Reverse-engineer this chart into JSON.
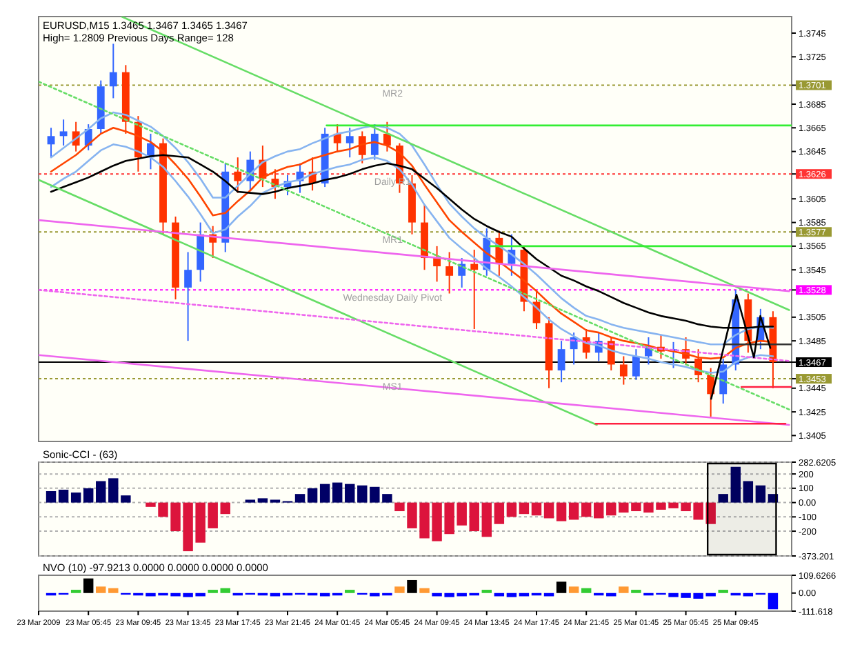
{
  "chart_data": [
    {
      "type": "candlestick",
      "title": "EURUSD,M15  1.3465 1.3467 1.3465 1.3467",
      "subtitle": "High= 1.2809   Previous Days Range= 128",
      "x": [
        "2009-03-23T02:45",
        "2009-03-23T03:45",
        "2009-03-23T04:45",
        "2009-03-23T05:45",
        "2009-03-23T06:45",
        "2009-03-23T07:45",
        "2009-03-23T08:45",
        "2009-03-23T09:45",
        "2009-03-23T10:45",
        "2009-03-23T11:45",
        "2009-03-23T12:45",
        "2009-03-23T13:45",
        "2009-03-23T14:45",
        "2009-03-23T15:45",
        "2009-03-23T16:45",
        "2009-03-23T17:45",
        "2009-03-23T18:45",
        "2009-03-23T19:45",
        "2009-03-23T20:45",
        "2009-03-23T21:45",
        "2009-03-23T22:45",
        "2009-03-23T23:45",
        "2009-03-24T00:45",
        "2009-03-24T01:45",
        "2009-03-24T02:45",
        "2009-03-24T03:45",
        "2009-03-24T04:45",
        "2009-03-24T05:45",
        "2009-03-24T06:45",
        "2009-03-24T07:45",
        "2009-03-24T08:45",
        "2009-03-24T09:45",
        "2009-03-24T10:45",
        "2009-03-24T11:45",
        "2009-03-24T12:45",
        "2009-03-24T13:45",
        "2009-03-24T14:45",
        "2009-03-24T15:45",
        "2009-03-24T16:45",
        "2009-03-24T17:45",
        "2009-03-24T18:45",
        "2009-03-24T19:45",
        "2009-03-24T20:45",
        "2009-03-24T21:45",
        "2009-03-24T22:45",
        "2009-03-24T23:45",
        "2009-03-25T00:45",
        "2009-03-25T01:45",
        "2009-03-25T02:45",
        "2009-03-25T03:45",
        "2009-03-25T04:45",
        "2009-03-25T05:45",
        "2009-03-25T06:45",
        "2009-03-25T07:45",
        "2009-03-25T08:45",
        "2009-03-25T09:45",
        "2009-03-25T10:45",
        "2009-03-25T11:45",
        "2009-03-25T12:45"
      ],
      "ohlc": [
        [
          1.3651,
          1.3665,
          1.364,
          1.3658
        ],
        [
          1.3658,
          1.3672,
          1.365,
          1.3662
        ],
        [
          1.3662,
          1.367,
          1.3645,
          1.365
        ],
        [
          1.365,
          1.3668,
          1.3646,
          1.3664
        ],
        [
          1.3664,
          1.3705,
          1.366,
          1.37
        ],
        [
          1.37,
          1.3736,
          1.369,
          1.3712
        ],
        [
          1.3712,
          1.3718,
          1.366,
          1.367
        ],
        [
          1.367,
          1.3675,
          1.3628,
          1.364
        ],
        [
          1.364,
          1.366,
          1.363,
          1.3652
        ],
        [
          1.3652,
          1.3656,
          1.3575,
          1.3585
        ],
        [
          1.3585,
          1.359,
          1.352,
          1.353
        ],
        [
          1.353,
          1.356,
          1.3485,
          1.3545
        ],
        [
          1.3545,
          1.3585,
          1.3535,
          1.3575
        ],
        [
          1.3575,
          1.3582,
          1.3555,
          1.3568
        ],
        [
          1.3568,
          1.3635,
          1.356,
          1.3628
        ],
        [
          1.3628,
          1.364,
          1.361,
          1.362
        ],
        [
          1.362,
          1.3645,
          1.3612,
          1.3638
        ],
        [
          1.3638,
          1.365,
          1.3615,
          1.3622
        ],
        [
          1.3622,
          1.363,
          1.3605,
          1.3615
        ],
        [
          1.3615,
          1.3625,
          1.3608,
          1.362
        ],
        [
          1.362,
          1.3635,
          1.361,
          1.3628
        ],
        [
          1.3628,
          1.364,
          1.3612,
          1.3618
        ],
        [
          1.3618,
          1.3665,
          1.3615,
          1.366
        ],
        [
          1.366,
          1.3668,
          1.3645,
          1.3652
        ],
        [
          1.3652,
          1.3665,
          1.364,
          1.3658
        ],
        [
          1.3658,
          1.3662,
          1.3635,
          1.3642
        ],
        [
          1.3642,
          1.3668,
          1.3638,
          1.366
        ],
        [
          1.366,
          1.367,
          1.3645,
          1.365
        ],
        [
          1.365,
          1.3652,
          1.361,
          1.3618
        ],
        [
          1.3618,
          1.3625,
          1.3575,
          1.3585
        ],
        [
          1.3585,
          1.36,
          1.3545,
          1.3555
        ],
        [
          1.3555,
          1.3565,
          1.3535,
          1.3548
        ],
        [
          1.3548,
          1.356,
          1.3525,
          1.354
        ],
        [
          1.354,
          1.3555,
          1.353,
          1.355
        ],
        [
          1.355,
          1.3562,
          1.3495,
          1.3545
        ],
        [
          1.3545,
          1.358,
          1.354,
          1.3572
        ],
        [
          1.3572,
          1.3578,
          1.354,
          1.355
        ],
        [
          1.355,
          1.3575,
          1.354,
          1.3562
        ],
        [
          1.3562,
          1.3565,
          1.351,
          1.3518
        ],
        [
          1.3518,
          1.3528,
          1.3495,
          1.35
        ],
        [
          1.35,
          1.3505,
          1.3445,
          1.346
        ],
        [
          1.346,
          1.3485,
          1.345,
          1.3478
        ],
        [
          1.3478,
          1.3492,
          1.3465,
          1.3488
        ],
        [
          1.3488,
          1.3495,
          1.347,
          1.3475
        ],
        [
          1.3475,
          1.3492,
          1.3468,
          1.3485
        ],
        [
          1.3485,
          1.3488,
          1.346,
          1.3465
        ],
        [
          1.3465,
          1.3472,
          1.3448,
          1.3455
        ],
        [
          1.3455,
          1.3478,
          1.3452,
          1.3472
        ],
        [
          1.3472,
          1.3488,
          1.3465,
          1.348
        ],
        [
          1.348,
          1.349,
          1.347,
          1.3476
        ],
        [
          1.3476,
          1.3484,
          1.3462,
          1.3478
        ],
        [
          1.3478,
          1.3488,
          1.3465,
          1.347
        ],
        [
          1.347,
          1.3478,
          1.345,
          1.3456
        ],
        [
          1.3456,
          1.3462,
          1.3421,
          1.344
        ],
        [
          1.344,
          1.347,
          1.3432,
          1.3465
        ],
        [
          1.3465,
          1.3528,
          1.346,
          1.352
        ],
        [
          1.352,
          1.3525,
          1.3475,
          1.3485
        ],
        [
          1.3485,
          1.3512,
          1.3478,
          1.3505
        ],
        [
          1.3505,
          1.351,
          1.3445,
          1.3467
        ]
      ],
      "colors": [
        "#3366ff",
        "#3366ff",
        "#ff3300",
        "#3366ff",
        "#3366ff",
        "#3366ff",
        "#ff3300",
        "#ff3300",
        "#3366ff",
        "#ff3300",
        "#ff3300",
        "#3366ff",
        "#3366ff",
        "#ff3300",
        "#3366ff",
        "#ff3300",
        "#3366ff",
        "#ff3300",
        "#ff3300",
        "#3366ff",
        "#3366ff",
        "#ff3300",
        "#3366ff",
        "#ff3300",
        "#3366ff",
        "#ff3300",
        "#3366ff",
        "#ff3300",
        "#ff3300",
        "#ff3300",
        "#ff3300",
        "#ff3300",
        "#ff3300",
        "#3366ff",
        "#ff3300",
        "#3366ff",
        "#ff3300",
        "#3366ff",
        "#ff3300",
        "#ff3300",
        "#ff3300",
        "#3366ff",
        "#3366ff",
        "#ff3300",
        "#3366ff",
        "#ff3300",
        "#ff3300",
        "#3366ff",
        "#3366ff",
        "#ff3300",
        "#3366ff",
        "#ff3300",
        "#ff3300",
        "#ff3300",
        "#3366ff",
        "#3366ff",
        "#ff3300",
        "#3366ff",
        "#ff3300"
      ],
      "series": [
        {
          "type": "line",
          "color": "#87b4f0",
          "values": [
            1.364,
            1.3648,
            1.3656,
            1.3664,
            1.3673,
            1.3678,
            1.3676,
            1.3671,
            1.3666,
            1.3658,
            1.3648,
            1.3636,
            1.3622,
            1.3606,
            1.3606,
            1.3616,
            1.3626,
            1.3636,
            1.3641,
            1.3645,
            1.3647,
            1.3652,
            1.3656,
            1.366,
            1.3662,
            1.3665,
            1.3667,
            1.3665,
            1.366,
            1.365,
            1.3634,
            1.3617,
            1.3601,
            1.359,
            1.358,
            1.3572,
            1.3565,
            1.3558,
            1.355,
            1.3541,
            1.3531,
            1.3521,
            1.3513,
            1.3506,
            1.3503,
            1.3499,
            1.3496,
            1.3494,
            1.3492,
            1.349,
            1.3488,
            1.3486,
            1.3484,
            1.3482,
            1.3482,
            1.349,
            1.3495,
            1.3497,
            1.3496
          ]
        },
        {
          "type": "line",
          "color": "#87b4f0",
          "values": [
            1.3615,
            1.3622,
            1.3628,
            1.3637,
            1.3646,
            1.3651,
            1.3649,
            1.3645,
            1.364,
            1.3632,
            1.362,
            1.3607,
            1.3592,
            1.3576,
            1.3579,
            1.359,
            1.3599,
            1.361,
            1.3615,
            1.3619,
            1.3621,
            1.3626,
            1.3629,
            1.3632,
            1.3634,
            1.3638,
            1.364,
            1.3637,
            1.363,
            1.3617,
            1.36,
            1.3586,
            1.3572,
            1.3563,
            1.3555,
            1.3546,
            1.3539,
            1.3531,
            1.3522,
            1.3513,
            1.3503,
            1.3495,
            1.3489,
            1.3483,
            1.3481,
            1.3477,
            1.3474,
            1.3472,
            1.347,
            1.3467,
            1.3465,
            1.3463,
            1.346,
            1.3458,
            1.3459,
            1.3467,
            1.3471,
            1.3473,
            1.3472
          ]
        },
        {
          "type": "line",
          "color": "#ff4500",
          "values": [
            1.3628,
            1.3635,
            1.3642,
            1.3651,
            1.366,
            1.3665,
            1.3662,
            1.3658,
            1.3653,
            1.3645,
            1.3634,
            1.3622,
            1.3607,
            1.3591,
            1.3593,
            1.3603,
            1.3612,
            1.3623,
            1.3628,
            1.3632,
            1.3634,
            1.3639,
            1.3642,
            1.3645,
            1.3647,
            1.3651,
            1.3653,
            1.365,
            1.3644,
            1.3633,
            1.3617,
            1.3602,
            1.3587,
            1.3577,
            1.3568,
            1.3559,
            1.3552,
            1.3544,
            1.3536,
            1.3527,
            1.3517,
            1.3508,
            1.3501,
            1.3494,
            1.3492,
            1.3488,
            1.3485,
            1.3483,
            1.3481,
            1.3478,
            1.3476,
            1.3474,
            1.3471,
            1.347,
            1.3471,
            1.3479,
            1.3483,
            1.3485,
            1.3484
          ]
        },
        {
          "type": "line",
          "color": "#000000",
          "values": [
            1.3611,
            1.3615,
            1.3619,
            1.3623,
            1.3628,
            1.3633,
            1.3637,
            1.3639,
            1.3641,
            1.3642,
            1.3641,
            1.364,
            1.3634,
            1.3628,
            1.362,
            1.3611,
            1.361,
            1.3609,
            1.3611,
            1.3614,
            1.3616,
            1.3618,
            1.3621,
            1.3623,
            1.3626,
            1.363,
            1.3633,
            1.3635,
            1.3633,
            1.363,
            1.3622,
            1.3614,
            1.3605,
            1.3596,
            1.3588,
            1.3582,
            1.3577,
            1.3573,
            1.3563,
            1.3554,
            1.3547,
            1.354,
            1.3536,
            1.3531,
            1.3527,
            1.3522,
            1.3517,
            1.3513,
            1.3509,
            1.3506,
            1.3504,
            1.3502,
            1.3499,
            1.3497,
            1.3496,
            1.3496,
            1.3496,
            1.3497,
            1.3497
          ]
        },
        {
          "type": "line",
          "color": "#66dd66",
          "x": [
            "2009-03-23T08:25",
            "2009-03-25T14:03"
          ],
          "values": [
            1.3759,
            1.3511
          ]
        },
        {
          "type": "line",
          "color": "#66dd66",
          "x": [
            "2009-03-23T01:45",
            "2009-03-24T22:36"
          ],
          "values": [
            1.3621,
            1.3414
          ]
        },
        {
          "type": "line",
          "color": "#66dd66",
          "line_style": "dotted",
          "x": [
            "2009-03-23T01:45",
            "2009-03-25T14:03"
          ],
          "values": [
            1.3704,
            1.3427
          ]
        },
        {
          "type": "line",
          "color": "#ee66ee",
          "x": [
            "2009-03-23T01:45",
            "2009-03-25T14:03"
          ],
          "values": [
            1.3587,
            1.3527
          ]
        },
        {
          "type": "line",
          "color": "#ee66ee",
          "x": [
            "2009-03-23T01:45",
            "2009-03-25T14:03"
          ],
          "values": [
            1.3473,
            1.3414
          ]
        },
        {
          "type": "line",
          "color": "#ee66ee",
          "line_style": "dotted",
          "x": [
            "2009-03-23T01:45",
            "2009-03-25T14:03"
          ],
          "values": [
            1.3528,
            1.3468
          ]
        },
        {
          "type": "line",
          "color": "#33ee33",
          "x": [
            "2009-03-24T00:53",
            "2009-03-25T14:15"
          ],
          "values": [
            1.3667,
            1.3667
          ]
        },
        {
          "type": "line",
          "color": "#33ee33",
          "x": [
            "2009-03-24T14:01",
            "2009-03-25T14:15"
          ],
          "values": [
            1.3565,
            1.3565
          ]
        },
        {
          "type": "line",
          "color": "#ff2040",
          "x": [
            "2009-03-25T10:13",
            "2009-03-25T14:15"
          ],
          "values": [
            1.3446,
            1.3446
          ]
        },
        {
          "type": "line",
          "color": "#ff2040",
          "x": [
            "2009-03-24T22:30",
            "2009-03-25T13:45"
          ],
          "values": [
            1.3415,
            1.3415
          ]
        },
        {
          "type": "line",
          "color": "#333333",
          "x": [
            "2009-03-25T08:48",
            "2009-03-25T14:15"
          ],
          "values": [
            1.3482,
            1.3482
          ]
        },
        {
          "type": "line",
          "color": "#000000",
          "x": [
            "2009-03-25T07:47",
            "2009-03-25T09:49",
            "2009-03-25T11:13",
            "2009-03-25T11:44",
            "2009-03-25T12:32"
          ],
          "values": [
            1.3436,
            1.3524,
            1.3471,
            1.3506,
            1.3479
          ]
        }
      ],
      "ref_lines": [
        {
          "axis": "y",
          "value": 1.3701,
          "label": "MR2",
          "color": "#999933",
          "line_style": "dotted"
        },
        {
          "axis": "y",
          "value": 1.3626,
          "label": "Daily R1",
          "color": "#ff3333",
          "line_style": "dotted"
        },
        {
          "axis": "y",
          "value": 1.3577,
          "label": "MR1",
          "color": "#999933",
          "line_style": "dotted"
        },
        {
          "axis": "y",
          "value": 1.3528,
          "label": "Wednesday  Daily Pivot",
          "color": "#ff00ff",
          "line_style": "dotted"
        },
        {
          "axis": "y",
          "value": 1.3453,
          "label": "MS1",
          "color": "#999933",
          "line_style": "dotted"
        },
        {
          "axis": "y",
          "value": 1.3467,
          "label": null,
          "color": "#000000",
          "line_style": "solid"
        }
      ],
      "xlim": [
        "2009-03-23T01:45",
        "2009-03-25T14:15"
      ],
      "ylim": [
        1.34,
        1.3759
      ],
      "yticks": [
        1.3745,
        1.3725,
        1.3701,
        1.3685,
        1.3665,
        1.3645,
        1.3626,
        1.3605,
        1.3585,
        1.3577,
        1.3565,
        1.3545,
        1.3528,
        1.3505,
        1.3485,
        1.3467,
        1.3453,
        1.3445,
        1.3425,
        1.3405
      ],
      "tick_labels": "y"
    },
    {
      "type": "bar",
      "title": "Sonic-CCI - (63)",
      "x": [
        "2009-03-23T02:45",
        "2009-03-23T03:45",
        "2009-03-23T04:45",
        "2009-03-23T05:45",
        "2009-03-23T06:45",
        "2009-03-23T07:45",
        "2009-03-23T08:45",
        "2009-03-23T09:45",
        "2009-03-23T10:45",
        "2009-03-23T11:45",
        "2009-03-23T12:45",
        "2009-03-23T13:45",
        "2009-03-23T14:45",
        "2009-03-23T15:45",
        "2009-03-23T16:45",
        "2009-03-23T17:45",
        "2009-03-23T18:45",
        "2009-03-23T19:45",
        "2009-03-23T20:45",
        "2009-03-23T21:45",
        "2009-03-23T22:45",
        "2009-03-23T23:45",
        "2009-03-24T00:45",
        "2009-03-24T01:45",
        "2009-03-24T02:45",
        "2009-03-24T03:45",
        "2009-03-24T04:45",
        "2009-03-24T05:45",
        "2009-03-24T06:45",
        "2009-03-24T07:45",
        "2009-03-24T08:45",
        "2009-03-24T09:45",
        "2009-03-24T10:45",
        "2009-03-24T11:45",
        "2009-03-24T12:45",
        "2009-03-24T13:45",
        "2009-03-24T14:45",
        "2009-03-24T15:45",
        "2009-03-24T16:45",
        "2009-03-24T17:45",
        "2009-03-24T18:45",
        "2009-03-24T19:45",
        "2009-03-24T20:45",
        "2009-03-24T21:45",
        "2009-03-24T22:45",
        "2009-03-24T23:45",
        "2009-03-25T00:45",
        "2009-03-25T01:45",
        "2009-03-25T02:45",
        "2009-03-25T03:45",
        "2009-03-25T04:45",
        "2009-03-25T05:45",
        "2009-03-25T06:45",
        "2009-03-25T07:45",
        "2009-03-25T08:45",
        "2009-03-25T09:45",
        "2009-03-25T10:45",
        "2009-03-25T11:45",
        "2009-03-25T12:45"
      ],
      "values": [
        80,
        90,
        70,
        100,
        150,
        170,
        50,
        0,
        -30,
        -100,
        -200,
        -340,
        -280,
        -180,
        -80,
        0,
        20,
        30,
        20,
        10,
        60,
        100,
        130,
        140,
        130,
        120,
        110,
        60,
        -60,
        -180,
        -250,
        -270,
        -220,
        -160,
        -200,
        -240,
        -150,
        -100,
        -80,
        -90,
        -110,
        -130,
        -120,
        -100,
        -110,
        -90,
        -70,
        -60,
        -70,
        -50,
        -40,
        -60,
        -120,
        -150,
        60,
        250,
        150,
        120,
        60
      ],
      "colors": [
        "#000066",
        "#000066",
        "#000066",
        "#000066",
        "#000066",
        "#000066",
        "#000066",
        "#dc143c",
        "#dc143c",
        "#dc143c",
        "#dc143c",
        "#dc143c",
        "#dc143c",
        "#dc143c",
        "#dc143c",
        "#dc143c",
        "#000066",
        "#000066",
        "#000066",
        "#000066",
        "#000066",
        "#000066",
        "#000066",
        "#000066",
        "#000066",
        "#000066",
        "#000066",
        "#000066",
        "#dc143c",
        "#dc143c",
        "#dc143c",
        "#dc143c",
        "#dc143c",
        "#dc143c",
        "#dc143c",
        "#dc143c",
        "#dc143c",
        "#dc143c",
        "#dc143c",
        "#dc143c",
        "#dc143c",
        "#dc143c",
        "#dc143c",
        "#dc143c",
        "#dc143c",
        "#dc143c",
        "#dc143c",
        "#dc143c",
        "#dc143c",
        "#dc143c",
        "#dc143c",
        "#dc143c",
        "#dc143c",
        "#dc143c",
        "#000066",
        "#000066",
        "#000066",
        "#000066",
        "#000066"
      ],
      "bands": [
        {
          "axis": "x",
          "from": "2009-03-25T07:30",
          "to": "2009-03-25T13:00",
          "color": "#000000"
        }
      ],
      "grid": "y",
      "xlim": [
        "2009-03-23T01:45",
        "2009-03-25T14:15"
      ],
      "ylim": [
        -373.201,
        282.6205
      ],
      "yticks": [
        282.6205,
        200,
        100,
        {
          "value": 0,
          "label": "0.00"
        },
        -100,
        -200,
        -373.201
      ],
      "tick_labels": "y"
    },
    {
      "type": "bar",
      "title": "NVO (10) -97.9213 0.0000 0.0000 0.0000 0.0000",
      "x": [
        "2009-03-23T02:45",
        "2009-03-23T03:45",
        "2009-03-23T04:45",
        "2009-03-23T05:45",
        "2009-03-23T06:45",
        "2009-03-23T07:45",
        "2009-03-23T08:45",
        "2009-03-23T09:45",
        "2009-03-23T10:45",
        "2009-03-23T11:45",
        "2009-03-23T12:45",
        "2009-03-23T13:45",
        "2009-03-23T14:45",
        "2009-03-23T15:45",
        "2009-03-23T16:45",
        "2009-03-23T17:45",
        "2009-03-23T18:45",
        "2009-03-23T19:45",
        "2009-03-23T20:45",
        "2009-03-23T21:45",
        "2009-03-23T22:45",
        "2009-03-23T23:45",
        "2009-03-24T00:45",
        "2009-03-24T01:45",
        "2009-03-24T02:45",
        "2009-03-24T03:45",
        "2009-03-24T04:45",
        "2009-03-24T05:45",
        "2009-03-24T06:45",
        "2009-03-24T07:45",
        "2009-03-24T08:45",
        "2009-03-24T09:45",
        "2009-03-24T10:45",
        "2009-03-24T11:45",
        "2009-03-24T12:45",
        "2009-03-24T13:45",
        "2009-03-24T14:45",
        "2009-03-24T15:45",
        "2009-03-24T16:45",
        "2009-03-24T17:45",
        "2009-03-24T18:45",
        "2009-03-24T19:45",
        "2009-03-24T20:45",
        "2009-03-24T21:45",
        "2009-03-24T22:45",
        "2009-03-24T23:45",
        "2009-03-25T00:45",
        "2009-03-25T01:45",
        "2009-03-25T02:45",
        "2009-03-25T03:45",
        "2009-03-25T04:45",
        "2009-03-25T05:45",
        "2009-03-25T06:45",
        "2009-03-25T07:45",
        "2009-03-25T08:45",
        "2009-03-25T09:45",
        "2009-03-25T10:45",
        "2009-03-25T11:45",
        "2009-03-25T12:45"
      ],
      "values": [
        -15,
        -10,
        20,
        90,
        40,
        30,
        -10,
        -15,
        -20,
        -15,
        -20,
        -25,
        -20,
        20,
        30,
        -15,
        -10,
        -15,
        -20,
        -15,
        -10,
        -15,
        -20,
        -15,
        20,
        -10,
        -20,
        -15,
        40,
        80,
        30,
        -20,
        -25,
        -20,
        -15,
        20,
        -20,
        -25,
        -20,
        -15,
        -20,
        70,
        40,
        30,
        -15,
        -20,
        40,
        20,
        -15,
        -10,
        -25,
        -30,
        -35,
        -20,
        20,
        -15,
        -20,
        -10,
        -100
      ],
      "colors": [
        "#0000ff",
        "#0000ff",
        "#33cc33",
        "#000000",
        "#ff9933",
        "#ff9933",
        "#0000ff",
        "#0000ff",
        "#0000ff",
        "#0000ff",
        "#0000ff",
        "#0000ff",
        "#0000ff",
        "#33cc33",
        "#33cc33",
        "#0000ff",
        "#0000ff",
        "#0000ff",
        "#0000ff",
        "#0000ff",
        "#0000ff",
        "#0000ff",
        "#0000ff",
        "#0000ff",
        "#33cc33",
        "#0000ff",
        "#0000ff",
        "#0000ff",
        "#ff9933",
        "#000000",
        "#ff9933",
        "#0000ff",
        "#0000ff",
        "#0000ff",
        "#0000ff",
        "#33cc33",
        "#0000ff",
        "#0000ff",
        "#0000ff",
        "#0000ff",
        "#0000ff",
        "#000000",
        "#ff9933",
        "#33cc33",
        "#0000ff",
        "#0000ff",
        "#ff9933",
        "#33cc33",
        "#0000ff",
        "#0000ff",
        "#0000ff",
        "#0000ff",
        "#0000ff",
        "#0000ff",
        "#33cc33",
        "#0000ff",
        "#0000ff",
        "#0000ff",
        "#0000ff"
      ],
      "xlim": [
        "2009-03-23T01:45",
        "2009-03-25T14:15"
      ],
      "xticks": [
        {
          "value": "2009-03-23T01:45",
          "label": "23 Mar 2009"
        },
        {
          "value": "2009-03-23T05:45",
          "label": "23 Mar 05:45"
        },
        {
          "value": "2009-03-23T09:45",
          "label": "23 Mar 09:45"
        },
        {
          "value": "2009-03-23T13:45",
          "label": "23 Mar 13:45"
        },
        {
          "value": "2009-03-23T17:45",
          "label": "23 Mar 17:45"
        },
        {
          "value": "2009-03-23T21:45",
          "label": "23 Mar 21:45"
        },
        {
          "value": "2009-03-24T01:45",
          "label": "24 Mar 01:45"
        },
        {
          "value": "2009-03-24T05:45",
          "label": "24 Mar 05:45"
        },
        {
          "value": "2009-03-24T09:45",
          "label": "24 Mar 09:45"
        },
        {
          "value": "2009-03-24T13:45",
          "label": "24 Mar 13:45"
        },
        {
          "value": "2009-03-24T17:45",
          "label": "24 Mar 17:45"
        },
        {
          "value": "2009-03-24T21:45",
          "label": "24 Mar 21:45"
        },
        {
          "value": "2009-03-25T01:45",
          "label": "25 Mar 01:45"
        },
        {
          "value": "2009-03-25T05:45",
          "label": "25 Mar 05:45"
        },
        {
          "value": "2009-03-25T09:45",
          "label": "25 Mar 09:45"
        }
      ],
      "ylim": [
        -111.618,
        109.6266
      ],
      "yticks": [
        109.6266,
        {
          "value": 0,
          "label": "0.00"
        },
        -111.618
      ]
    }
  ]
}
